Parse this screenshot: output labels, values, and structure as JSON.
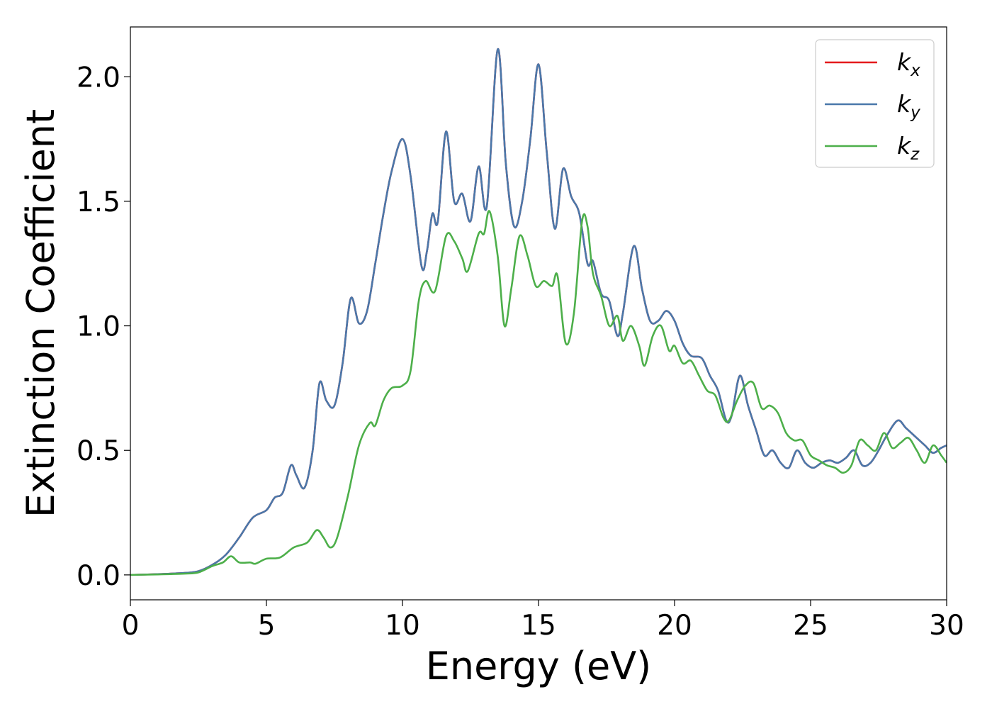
{
  "chart_data": {
    "type": "line",
    "title": "",
    "xlabel": "Energy (eV)",
    "ylabel": "Extinction Coefficient",
    "xlim": [
      0,
      30
    ],
    "ylim": [
      -0.1,
      2.2
    ],
    "xticks": [
      0,
      5,
      10,
      15,
      20,
      25,
      30
    ],
    "xtick_labels": [
      "0",
      "5",
      "10",
      "15",
      "20",
      "25",
      "30"
    ],
    "yticks": [
      0.0,
      0.5,
      1.0,
      1.5,
      2.0
    ],
    "ytick_labels": [
      "0.0",
      "0.5",
      "1.0",
      "1.5",
      "2.0"
    ],
    "grid": false,
    "legend_position": "top-right",
    "series": [
      {
        "name": "k_x",
        "legend_main": "k",
        "legend_sub": "x",
        "color": "#e41a1c",
        "x": [
          0,
          1,
          2,
          2.5,
          3,
          3.5,
          4,
          4.5,
          5,
          5.3,
          5.6,
          5.9,
          6.1,
          6.4,
          6.7,
          6.95,
          7.2,
          7.5,
          7.8,
          8.1,
          8.4,
          8.7,
          9.0,
          9.3,
          9.6,
          10.0,
          10.3,
          10.7,
          10.9,
          11.1,
          11.3,
          11.6,
          11.9,
          12.2,
          12.5,
          12.8,
          13.1,
          13.5,
          13.8,
          14.1,
          14.4,
          14.7,
          15.0,
          15.3,
          15.6,
          15.9,
          16.2,
          16.5,
          16.8,
          17.0,
          17.3,
          17.6,
          17.9,
          18.1,
          18.5,
          18.8,
          19.1,
          19.4,
          19.7,
          20.0,
          20.3,
          20.6,
          21.0,
          21.3,
          21.6,
          21.9,
          22.1,
          22.4,
          22.7,
          23.0,
          23.3,
          23.6,
          23.9,
          24.2,
          24.5,
          24.8,
          25.1,
          25.4,
          25.7,
          26.0,
          26.3,
          26.6,
          26.9,
          27.2,
          27.5,
          27.8,
          28.2,
          28.5,
          28.8,
          29.2,
          29.5,
          29.8,
          30.0
        ],
        "y": [
          0.0,
          0.003,
          0.008,
          0.015,
          0.04,
          0.08,
          0.15,
          0.23,
          0.26,
          0.31,
          0.33,
          0.44,
          0.4,
          0.35,
          0.5,
          0.77,
          0.7,
          0.68,
          0.85,
          1.11,
          1.01,
          1.06,
          1.25,
          1.45,
          1.62,
          1.75,
          1.6,
          1.24,
          1.3,
          1.45,
          1.42,
          1.78,
          1.5,
          1.53,
          1.42,
          1.64,
          1.48,
          2.11,
          1.65,
          1.4,
          1.5,
          1.75,
          2.05,
          1.7,
          1.39,
          1.63,
          1.52,
          1.45,
          1.25,
          1.26,
          1.13,
          1.1,
          0.96,
          1.05,
          1.32,
          1.15,
          1.02,
          1.02,
          1.06,
          1.02,
          0.93,
          0.88,
          0.87,
          0.8,
          0.74,
          0.62,
          0.64,
          0.8,
          0.68,
          0.58,
          0.48,
          0.5,
          0.45,
          0.43,
          0.5,
          0.45,
          0.43,
          0.45,
          0.46,
          0.45,
          0.47,
          0.5,
          0.44,
          0.45,
          0.5,
          0.56,
          0.62,
          0.59,
          0.56,
          0.52,
          0.49,
          0.51,
          0.52
        ]
      },
      {
        "name": "k_y",
        "legend_main": "k",
        "legend_sub": "y",
        "color": "#4a78aa",
        "x": [
          0,
          1,
          2,
          2.5,
          3,
          3.5,
          4,
          4.5,
          5,
          5.3,
          5.6,
          5.9,
          6.1,
          6.4,
          6.7,
          6.95,
          7.2,
          7.5,
          7.8,
          8.1,
          8.4,
          8.7,
          9.0,
          9.3,
          9.6,
          10.0,
          10.3,
          10.7,
          10.9,
          11.1,
          11.3,
          11.6,
          11.9,
          12.2,
          12.5,
          12.8,
          13.1,
          13.5,
          13.8,
          14.1,
          14.4,
          14.7,
          15.0,
          15.3,
          15.6,
          15.9,
          16.2,
          16.5,
          16.8,
          17.0,
          17.3,
          17.6,
          17.9,
          18.1,
          18.5,
          18.8,
          19.1,
          19.4,
          19.7,
          20.0,
          20.3,
          20.6,
          21.0,
          21.3,
          21.6,
          21.9,
          22.1,
          22.4,
          22.7,
          23.0,
          23.3,
          23.6,
          23.9,
          24.2,
          24.5,
          24.8,
          25.1,
          25.4,
          25.7,
          26.0,
          26.3,
          26.6,
          26.9,
          27.2,
          27.5,
          27.8,
          28.2,
          28.5,
          28.8,
          29.2,
          29.5,
          29.8,
          30.0
        ],
        "y": [
          0.0,
          0.003,
          0.008,
          0.015,
          0.04,
          0.08,
          0.15,
          0.23,
          0.26,
          0.31,
          0.33,
          0.44,
          0.4,
          0.35,
          0.5,
          0.77,
          0.7,
          0.68,
          0.85,
          1.11,
          1.01,
          1.06,
          1.25,
          1.45,
          1.62,
          1.75,
          1.6,
          1.24,
          1.3,
          1.45,
          1.42,
          1.78,
          1.5,
          1.53,
          1.42,
          1.64,
          1.48,
          2.11,
          1.65,
          1.4,
          1.5,
          1.75,
          2.05,
          1.7,
          1.39,
          1.63,
          1.52,
          1.45,
          1.25,
          1.26,
          1.13,
          1.1,
          0.96,
          1.05,
          1.32,
          1.15,
          1.02,
          1.02,
          1.06,
          1.02,
          0.93,
          0.88,
          0.87,
          0.8,
          0.74,
          0.62,
          0.64,
          0.8,
          0.68,
          0.58,
          0.48,
          0.5,
          0.45,
          0.43,
          0.5,
          0.45,
          0.43,
          0.45,
          0.46,
          0.45,
          0.47,
          0.5,
          0.44,
          0.45,
          0.5,
          0.56,
          0.62,
          0.59,
          0.56,
          0.52,
          0.49,
          0.51,
          0.52
        ]
      },
      {
        "name": "k_z",
        "legend_main": "k",
        "legend_sub": "z",
        "color": "#4daf4a",
        "x": [
          0,
          1,
          2,
          2.5,
          3,
          3.4,
          3.7,
          4.0,
          4.4,
          4.6,
          5.0,
          5.5,
          6.0,
          6.5,
          6.85,
          7.1,
          7.35,
          7.6,
          8.0,
          8.4,
          8.8,
          9.0,
          9.3,
          9.6,
          10.0,
          10.3,
          10.6,
          10.85,
          11.2,
          11.6,
          11.9,
          12.2,
          12.4,
          12.8,
          13.0,
          13.2,
          13.5,
          13.75,
          14.0,
          14.3,
          14.6,
          14.9,
          15.2,
          15.5,
          15.7,
          16.0,
          16.3,
          16.6,
          16.8,
          17.0,
          17.3,
          17.6,
          17.9,
          18.1,
          18.4,
          18.7,
          18.9,
          19.2,
          19.5,
          19.8,
          20.0,
          20.3,
          20.6,
          20.9,
          21.2,
          21.5,
          21.8,
          22.0,
          22.3,
          22.6,
          22.9,
          23.2,
          23.5,
          23.8,
          24.1,
          24.4,
          24.7,
          25.0,
          25.3,
          25.6,
          25.9,
          26.2,
          26.5,
          26.8,
          27.1,
          27.4,
          27.7,
          28.0,
          28.3,
          28.6,
          28.9,
          29.2,
          29.5,
          29.8,
          30.0
        ],
        "y": [
          0.0,
          0.002,
          0.005,
          0.01,
          0.035,
          0.05,
          0.075,
          0.05,
          0.05,
          0.045,
          0.065,
          0.07,
          0.11,
          0.13,
          0.18,
          0.15,
          0.11,
          0.15,
          0.32,
          0.52,
          0.61,
          0.6,
          0.7,
          0.75,
          0.76,
          0.82,
          1.1,
          1.18,
          1.14,
          1.36,
          1.34,
          1.27,
          1.22,
          1.37,
          1.37,
          1.46,
          1.28,
          1.0,
          1.15,
          1.36,
          1.28,
          1.16,
          1.18,
          1.16,
          1.2,
          0.93,
          1.05,
          1.42,
          1.4,
          1.21,
          1.12,
          1.0,
          1.04,
          0.94,
          1.0,
          0.92,
          0.84,
          0.96,
          1.0,
          0.9,
          0.92,
          0.85,
          0.86,
          0.8,
          0.74,
          0.72,
          0.63,
          0.62,
          0.7,
          0.76,
          0.77,
          0.67,
          0.68,
          0.65,
          0.57,
          0.54,
          0.54,
          0.48,
          0.46,
          0.44,
          0.43,
          0.41,
          0.44,
          0.54,
          0.52,
          0.5,
          0.57,
          0.51,
          0.53,
          0.55,
          0.5,
          0.45,
          0.52,
          0.48,
          0.45
        ]
      }
    ]
  }
}
